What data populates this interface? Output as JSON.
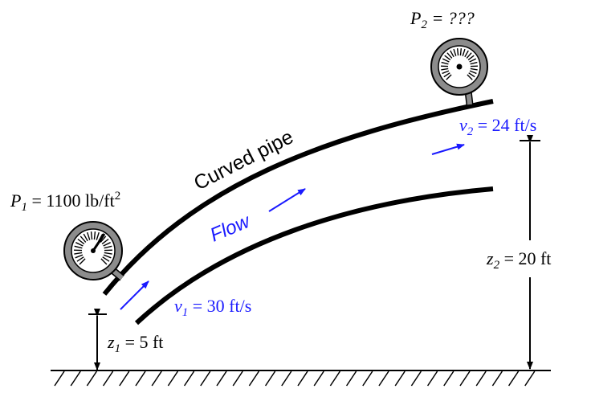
{
  "colors": {
    "ink": "#000000",
    "flow": "#1a1aff",
    "gauge_face": "#8c8c8c",
    "gauge_inner": "#ffffff"
  },
  "icons": [
    "pressure-gauge-icon",
    "flow-arrow-icon",
    "dimension-arrow-icon",
    "ground-hatch-icon"
  ],
  "labels": {
    "p1_symbol": "P",
    "p1_sub": "1",
    "p1_value": " = 1100 lb/ft",
    "p1_exp": "2",
    "p2_symbol": "P",
    "p2_sub": "2",
    "p2_value": " = ???",
    "curved_pipe": "Curved pipe",
    "flow": "Flow",
    "v1_symbol": "v",
    "v1_sub": "1",
    "v1_value": " = 30 ft/s",
    "v2_symbol": "v",
    "v2_sub": "2",
    "v2_value": " = 24 ft/s",
    "z1_symbol": "z",
    "z1_sub": "1",
    "z1_value": " = 5 ft",
    "z2_symbol": "z",
    "z2_sub": "2",
    "z2_value": " = 20 ft"
  }
}
